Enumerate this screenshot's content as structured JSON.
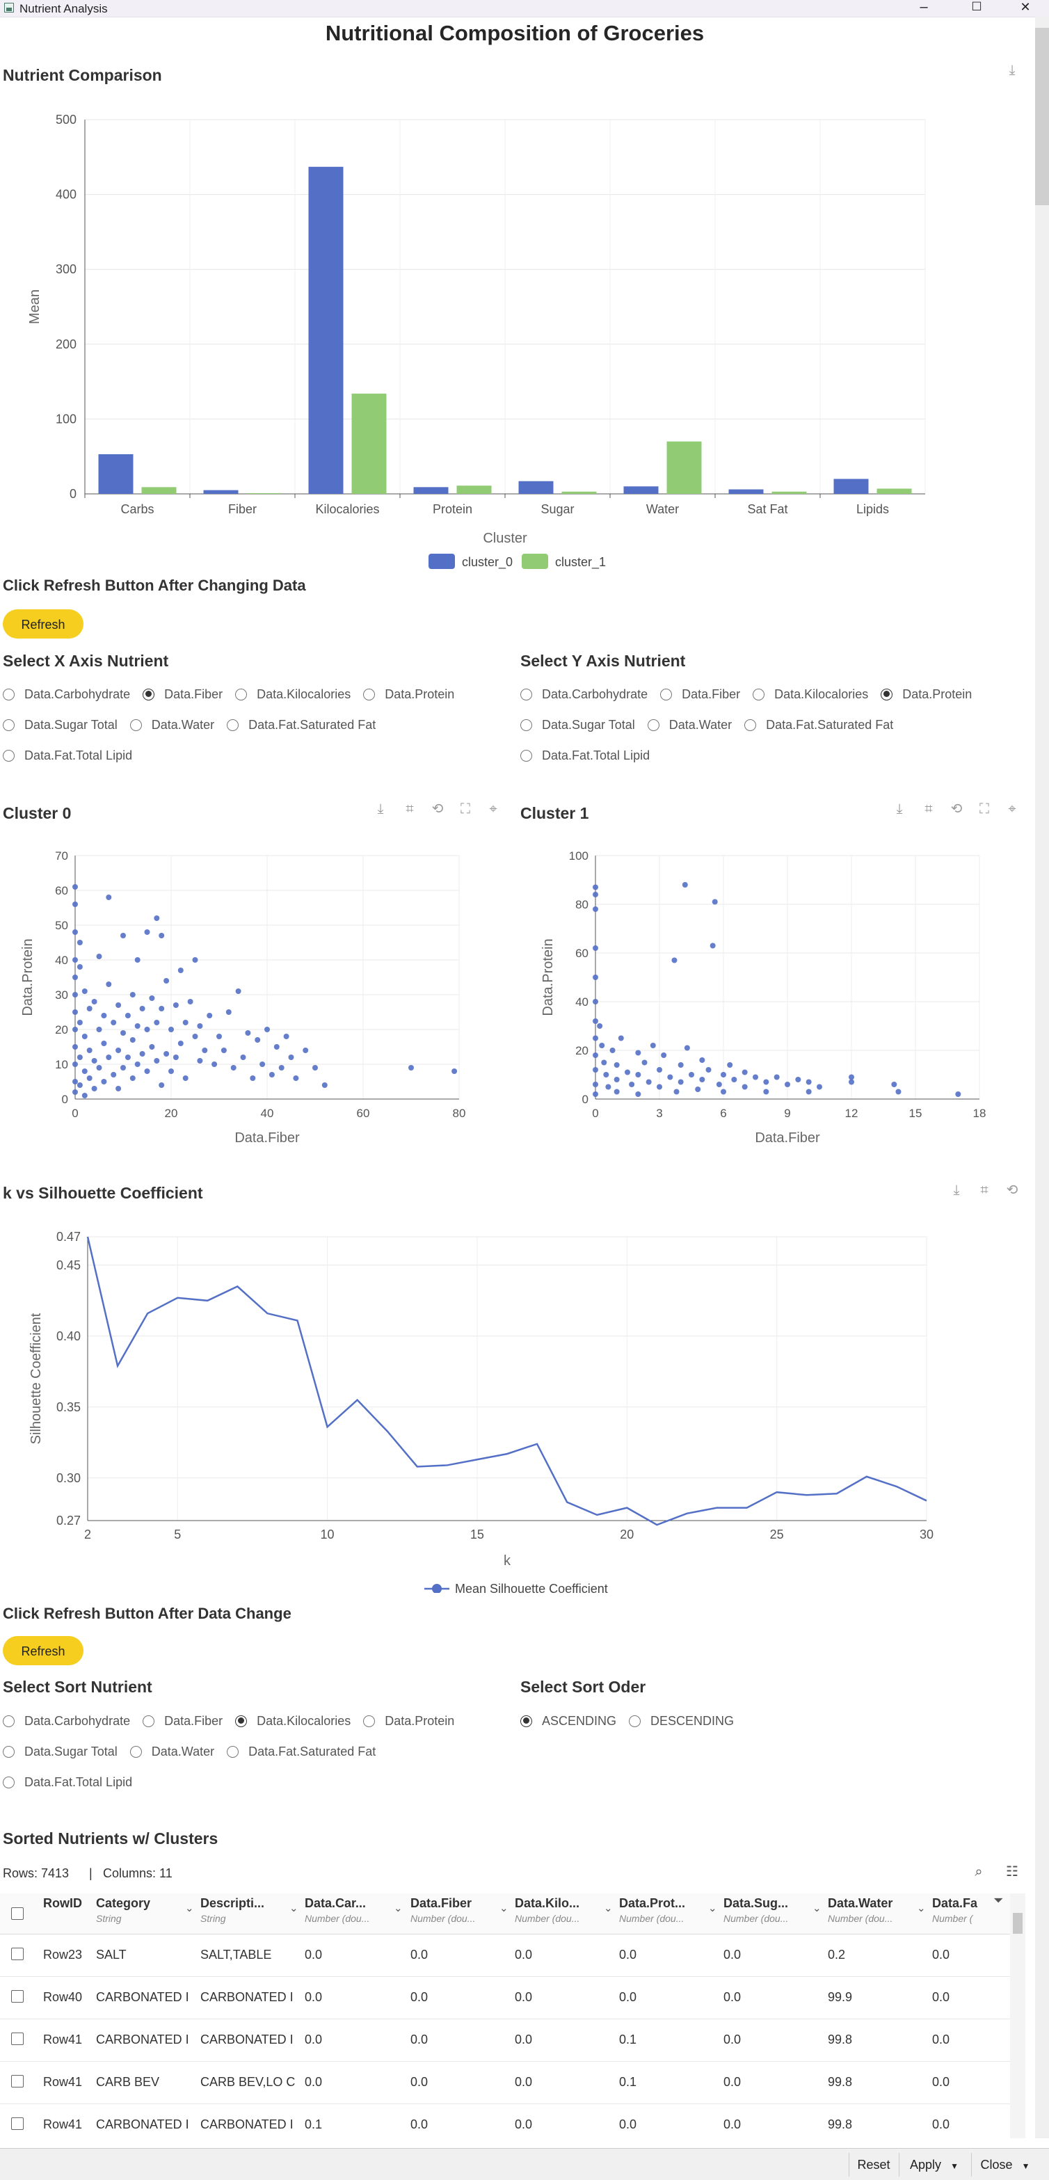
{
  "window": {
    "title": "Nutrient Analysis",
    "minimize": "–",
    "maximize": "☐",
    "close": "✕"
  },
  "page_title": "Nutritional Composition of Groceries",
  "bar_chart": {
    "title": "Nutrient Comparison",
    "chart_data": {
      "type": "bar",
      "categories": [
        "Carbs",
        "Fiber",
        "Kilocalories",
        "Protein",
        "Sugar",
        "Water",
        "Sat Fat",
        "Lipids"
      ],
      "series": [
        {
          "name": "cluster_0",
          "color": "#5470c6",
          "values": [
            53,
            5,
            437,
            9,
            17,
            10,
            6,
            20
          ]
        },
        {
          "name": "cluster_1",
          "color": "#91cc75",
          "values": [
            9,
            1,
            134,
            11,
            3,
            70,
            3,
            7
          ]
        }
      ],
      "xlabel": "Cluster",
      "ylabel": "Mean",
      "yticks": [
        "0",
        "100",
        "200",
        "300",
        "400",
        "500"
      ],
      "ylim": [
        0,
        500
      ],
      "legend": "bottom-center"
    }
  },
  "refresh1": {
    "label": "Click Refresh Button After Changing Data",
    "button": "Refresh"
  },
  "x_axis_select": {
    "title": "Select X Axis Nutrient",
    "options": [
      "Data.Carbohydrate",
      "Data.Fiber",
      "Data.Kilocalories",
      "Data.Protein",
      "Data.Sugar Total",
      "Data.Water",
      "Data.Fat.Saturated Fat",
      "Data.Fat.Total Lipid"
    ],
    "selected": "Data.Fiber"
  },
  "y_axis_select": {
    "title": "Select Y Axis Nutrient",
    "options": [
      "Data.Carbohydrate",
      "Data.Fiber",
      "Data.Kilocalories",
      "Data.Protein",
      "Data.Sugar Total",
      "Data.Water",
      "Data.Fat.Saturated Fat",
      "Data.Fat.Total Lipid"
    ],
    "selected": "Data.Protein"
  },
  "scatter0": {
    "title": "Cluster 0",
    "chart_data": {
      "type": "scatter",
      "xlabel": "Data.Fiber",
      "ylabel": "Data.Protein",
      "xlim": [
        0,
        80
      ],
      "ylim": [
        0,
        70
      ],
      "xticks": [
        "0",
        "20",
        "40",
        "60",
        "80"
      ],
      "yticks": [
        "0",
        "10",
        "20",
        "30",
        "40",
        "50",
        "60",
        "70"
      ],
      "color": "#5470c6",
      "points": [
        [
          0,
          61
        ],
        [
          0,
          56
        ],
        [
          0,
          48
        ],
        [
          0,
          40
        ],
        [
          0,
          35
        ],
        [
          0,
          30
        ],
        [
          0,
          25
        ],
        [
          0,
          20
        ],
        [
          0,
          15
        ],
        [
          0,
          10
        ],
        [
          0,
          5
        ],
        [
          0,
          2
        ],
        [
          1,
          45
        ],
        [
          1,
          38
        ],
        [
          1,
          22
        ],
        [
          1,
          12
        ],
        [
          1,
          4
        ],
        [
          2,
          31
        ],
        [
          2,
          18
        ],
        [
          2,
          8
        ],
        [
          2,
          1
        ],
        [
          3,
          26
        ],
        [
          3,
          14
        ],
        [
          3,
          6
        ],
        [
          4,
          28
        ],
        [
          4,
          11
        ],
        [
          4,
          3
        ],
        [
          5,
          41
        ],
        [
          5,
          20
        ],
        [
          5,
          9
        ],
        [
          6,
          24
        ],
        [
          6,
          16
        ],
        [
          6,
          5
        ],
        [
          7,
          58
        ],
        [
          7,
          33
        ],
        [
          7,
          12
        ],
        [
          8,
          22
        ],
        [
          8,
          7
        ],
        [
          9,
          27
        ],
        [
          9,
          14
        ],
        [
          9,
          3
        ],
        [
          10,
          47
        ],
        [
          10,
          19
        ],
        [
          10,
          9
        ],
        [
          11,
          24
        ],
        [
          11,
          12
        ],
        [
          12,
          30
        ],
        [
          12,
          17
        ],
        [
          12,
          6
        ],
        [
          13,
          40
        ],
        [
          13,
          21
        ],
        [
          13,
          10
        ],
        [
          14,
          26
        ],
        [
          14,
          13
        ],
        [
          15,
          48
        ],
        [
          15,
          20
        ],
        [
          15,
          8
        ],
        [
          16,
          29
        ],
        [
          16,
          15
        ],
        [
          17,
          52
        ],
        [
          17,
          22
        ],
        [
          17,
          11
        ],
        [
          18,
          47
        ],
        [
          18,
          26
        ],
        [
          18,
          4
        ],
        [
          19,
          34
        ],
        [
          19,
          13
        ],
        [
          20,
          20
        ],
        [
          20,
          8
        ],
        [
          21,
          27
        ],
        [
          21,
          12
        ],
        [
          22,
          37
        ],
        [
          22,
          16
        ],
        [
          23,
          22
        ],
        [
          23,
          6
        ],
        [
          24,
          28
        ],
        [
          25,
          40
        ],
        [
          25,
          18
        ],
        [
          26,
          21
        ],
        [
          26,
          11
        ],
        [
          27,
          14
        ],
        [
          28,
          24
        ],
        [
          29,
          10
        ],
        [
          30,
          18
        ],
        [
          31,
          14
        ],
        [
          32,
          25
        ],
        [
          33,
          9
        ],
        [
          34,
          31
        ],
        [
          35,
          12
        ],
        [
          36,
          19
        ],
        [
          37,
          6
        ],
        [
          38,
          17
        ],
        [
          39,
          10
        ],
        [
          40,
          20
        ],
        [
          41,
          7
        ],
        [
          42,
          15
        ],
        [
          43,
          9
        ],
        [
          44,
          18
        ],
        [
          45,
          12
        ],
        [
          46,
          6
        ],
        [
          48,
          14
        ],
        [
          50,
          9
        ],
        [
          52,
          4
        ],
        [
          70,
          9
        ],
        [
          79,
          8
        ]
      ]
    }
  },
  "scatter1": {
    "title": "Cluster 1",
    "chart_data": {
      "type": "scatter",
      "xlabel": "Data.Fiber",
      "ylabel": "Data.Protein",
      "xlim": [
        0,
        18
      ],
      "ylim": [
        0,
        100
      ],
      "xticks": [
        "0",
        "3",
        "6",
        "9",
        "12",
        "15",
        "18"
      ],
      "yticks": [
        "0",
        "20",
        "40",
        "60",
        "80",
        "100"
      ],
      "color": "#5470c6",
      "points": [
        [
          0,
          87
        ],
        [
          0,
          84
        ],
        [
          0,
          78
        ],
        [
          0,
          62
        ],
        [
          0,
          50
        ],
        [
          0,
          40
        ],
        [
          0,
          32
        ],
        [
          0,
          25
        ],
        [
          0,
          18
        ],
        [
          0,
          12
        ],
        [
          0,
          6
        ],
        [
          0,
          2
        ],
        [
          0.2,
          30
        ],
        [
          0.3,
          22
        ],
        [
          0.4,
          15
        ],
        [
          0.5,
          10
        ],
        [
          0.6,
          5
        ],
        [
          0.8,
          20
        ],
        [
          1,
          14
        ],
        [
          1,
          8
        ],
        [
          1,
          3
        ],
        [
          1.2,
          25
        ],
        [
          1.5,
          11
        ],
        [
          1.7,
          6
        ],
        [
          2,
          19
        ],
        [
          2,
          10
        ],
        [
          2,
          2
        ],
        [
          2.3,
          15
        ],
        [
          2.5,
          7
        ],
        [
          2.7,
          22
        ],
        [
          3,
          12
        ],
        [
          3,
          5
        ],
        [
          3.2,
          18
        ],
        [
          3.5,
          9
        ],
        [
          3.7,
          57
        ],
        [
          3.8,
          3
        ],
        [
          4,
          14
        ],
        [
          4,
          7
        ],
        [
          4.3,
          21
        ],
        [
          4.5,
          10
        ],
        [
          4.8,
          4
        ],
        [
          5,
          16
        ],
        [
          5,
          8
        ],
        [
          5.3,
          12
        ],
        [
          5.5,
          63
        ],
        [
          5.6,
          81
        ],
        [
          5.8,
          6
        ],
        [
          6,
          10
        ],
        [
          6,
          3
        ],
        [
          6.3,
          14
        ],
        [
          6.5,
          8
        ],
        [
          7,
          11
        ],
        [
          7,
          5
        ],
        [
          7.5,
          9
        ],
        [
          8,
          7
        ],
        [
          8,
          3
        ],
        [
          8.5,
          9
        ],
        [
          9,
          6
        ],
        [
          9.5,
          8
        ],
        [
          10,
          7
        ],
        [
          10,
          3
        ],
        [
          10.5,
          5
        ],
        [
          12,
          9
        ],
        [
          12,
          7
        ],
        [
          14,
          6
        ],
        [
          14.2,
          3
        ],
        [
          17,
          2
        ],
        [
          4.2,
          88
        ]
      ]
    }
  },
  "silhouette": {
    "title": "k vs Silhouette Coefficient",
    "chart_data": {
      "type": "line",
      "xlabel": "k",
      "ylabel": "Silhouette Coefficient",
      "xlim": [
        2,
        30
      ],
      "ylim": [
        0.27,
        0.47
      ],
      "xticks": [
        "2",
        "5",
        "10",
        "15",
        "20",
        "25",
        "30"
      ],
      "yticks": [
        "0.27",
        "0.30",
        "0.35",
        "0.40",
        "0.45",
        "0.47"
      ],
      "color": "#5470c6",
      "series_name": "Mean Silhouette Coefficient",
      "x": [
        2,
        3,
        4,
        5,
        6,
        7,
        8,
        9,
        10,
        11,
        12,
        13,
        14,
        15,
        16,
        17,
        18,
        19,
        20,
        21,
        22,
        23,
        24,
        25,
        26,
        27,
        28,
        29,
        30
      ],
      "y": [
        0.47,
        0.379,
        0.416,
        0.427,
        0.425,
        0.435,
        0.416,
        0.411,
        0.336,
        0.355,
        0.333,
        0.308,
        0.309,
        0.313,
        0.317,
        0.324,
        0.283,
        0.274,
        0.279,
        0.267,
        0.275,
        0.279,
        0.279,
        0.29,
        0.288,
        0.289,
        0.301,
        0.294,
        0.284
      ]
    }
  },
  "refresh2": {
    "label": "Click Refresh Button After Data Change",
    "button": "Refresh"
  },
  "sort_select": {
    "title": "Select Sort Nutrient",
    "options": [
      "Data.Carbohydrate",
      "Data.Fiber",
      "Data.Kilocalories",
      "Data.Protein",
      "Data.Sugar Total",
      "Data.Water",
      "Data.Fat.Saturated Fat",
      "Data.Fat.Total Lipid"
    ],
    "selected": "Data.Kilocalories"
  },
  "sort_order": {
    "title": "Select Sort Oder",
    "options": [
      "ASCENDING",
      "DESCENDING"
    ],
    "selected": "ASCENDING"
  },
  "table": {
    "title": "Sorted Nutrients w/ Clusters",
    "rows_label": "Rows: 7413",
    "cols_label": "Columns: 11",
    "columns": [
      {
        "name": "RowID",
        "type": ""
      },
      {
        "name": "Category",
        "type": "String"
      },
      {
        "name": "Descripti...",
        "type": "String"
      },
      {
        "name": "Data.Car...",
        "type": "Number (dou..."
      },
      {
        "name": "Data.Fiber",
        "type": "Number (dou..."
      },
      {
        "name": "Data.Kilo...",
        "type": "Number (dou..."
      },
      {
        "name": "Data.Prot...",
        "type": "Number (dou..."
      },
      {
        "name": "Data.Sug...",
        "type": "Number (dou..."
      },
      {
        "name": "Data.Water",
        "type": "Number (dou..."
      },
      {
        "name": "Data.Fa",
        "type": "Number ("
      }
    ],
    "rows": [
      [
        "Row23",
        "SALT",
        "SALT,TABLE",
        "0.0",
        "0.0",
        "0.0",
        "0.0",
        "0.0",
        "0.2",
        "0.0"
      ],
      [
        "Row40",
        "CARBONATED I",
        "CARBONATED I",
        "0.0",
        "0.0",
        "0.0",
        "0.0",
        "0.0",
        "99.9",
        "0.0"
      ],
      [
        "Row41",
        "CARBONATED I",
        "CARBONATED I",
        "0.0",
        "0.0",
        "0.0",
        "0.1",
        "0.0",
        "99.8",
        "0.0"
      ],
      [
        "Row41",
        "CARB BEV",
        "CARB BEV,LO C",
        "0.0",
        "0.0",
        "0.0",
        "0.1",
        "0.0",
        "99.8",
        "0.0"
      ],
      [
        "Row41",
        "CARBONATED I",
        "CARBONATED I",
        "0.1",
        "0.0",
        "0.0",
        "0.0",
        "0.0",
        "99.8",
        "0.0"
      ]
    ]
  },
  "bottom_bar": {
    "reset": "Reset",
    "apply": "Apply",
    "close": "Close"
  }
}
